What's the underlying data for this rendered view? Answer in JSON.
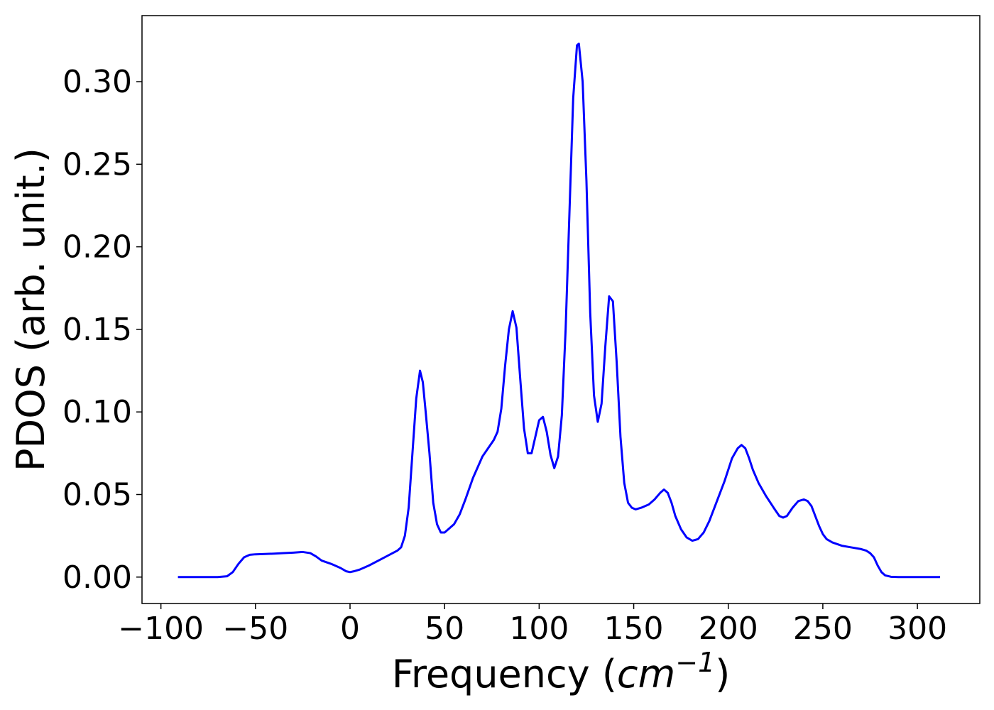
{
  "chart_data": {
    "type": "line",
    "title": "",
    "xlabel_main": "Frequency (",
    "xlabel_unit": "cm",
    "xlabel_sup": "−1",
    "xlabel_close": ")",
    "ylabel": "PDOS (arb. unit.)",
    "xlim": [
      -110,
      333
    ],
    "ylim": [
      -0.016,
      0.34
    ],
    "xticks": [
      -100,
      -50,
      0,
      50,
      100,
      150,
      200,
      250,
      300
    ],
    "xtick_labels": [
      "−100",
      "−50",
      "0",
      "50",
      "100",
      "150",
      "200",
      "250",
      "300"
    ],
    "yticks": [
      0.0,
      0.05,
      0.1,
      0.15,
      0.2,
      0.25,
      0.3
    ],
    "ytick_labels": [
      "0.00",
      "0.05",
      "0.10",
      "0.15",
      "0.20",
      "0.25",
      "0.30"
    ],
    "grid": false,
    "series": [
      {
        "color": "#0000ff",
        "x": [
          -91,
          -80,
          -70,
          -65,
          -62,
          -59,
          -56,
          -53,
          -50,
          -45,
          -40,
          -35,
          -30,
          -25,
          -21,
          -18,
          -15,
          -10,
          -5,
          -2,
          0,
          2,
          5,
          10,
          15,
          20,
          25,
          27,
          29,
          31,
          33,
          35,
          37,
          38.5,
          40,
          42,
          44,
          46,
          48,
          50,
          52,
          55,
          58,
          61,
          65,
          70,
          73,
          76,
          78,
          80,
          82,
          84,
          86,
          88,
          90,
          92,
          94,
          96,
          98,
          100,
          102,
          104,
          106,
          108,
          110,
          112,
          114,
          116,
          118,
          120,
          121,
          123,
          125,
          127,
          129,
          131,
          133,
          135,
          137,
          139,
          141,
          143,
          145,
          147,
          149,
          151,
          154,
          158,
          161,
          164,
          166,
          168,
          170,
          172,
          175,
          178,
          181,
          184,
          187,
          190,
          194,
          198,
          202,
          205,
          207,
          209,
          211,
          213,
          216,
          220,
          224,
          227,
          229,
          231,
          234,
          237,
          240,
          242,
          244,
          246,
          248,
          250,
          252,
          255,
          260,
          265,
          270,
          273,
          275,
          277,
          279,
          281,
          283,
          286,
          290,
          300,
          312
        ],
        "y": [
          0.0,
          0.0,
          0.0,
          0.0005,
          0.003,
          0.008,
          0.012,
          0.0135,
          0.0138,
          0.014,
          0.0142,
          0.0145,
          0.0148,
          0.0152,
          0.0145,
          0.0125,
          0.01,
          0.008,
          0.0055,
          0.0035,
          0.003,
          0.0035,
          0.0045,
          0.007,
          0.01,
          0.013,
          0.016,
          0.018,
          0.025,
          0.042,
          0.075,
          0.108,
          0.125,
          0.118,
          0.1,
          0.075,
          0.045,
          0.032,
          0.027,
          0.027,
          0.029,
          0.032,
          0.038,
          0.047,
          0.06,
          0.073,
          0.078,
          0.083,
          0.088,
          0.102,
          0.128,
          0.15,
          0.161,
          0.151,
          0.12,
          0.09,
          0.075,
          0.075,
          0.085,
          0.095,
          0.097,
          0.088,
          0.074,
          0.066,
          0.073,
          0.098,
          0.15,
          0.22,
          0.29,
          0.322,
          0.323,
          0.3,
          0.24,
          0.16,
          0.11,
          0.094,
          0.105,
          0.14,
          0.17,
          0.167,
          0.13,
          0.085,
          0.057,
          0.045,
          0.042,
          0.041,
          0.042,
          0.044,
          0.047,
          0.051,
          0.053,
          0.051,
          0.045,
          0.037,
          0.029,
          0.024,
          0.022,
          0.023,
          0.027,
          0.034,
          0.046,
          0.058,
          0.072,
          0.078,
          0.08,
          0.078,
          0.072,
          0.065,
          0.057,
          0.049,
          0.042,
          0.037,
          0.036,
          0.037,
          0.042,
          0.046,
          0.047,
          0.046,
          0.043,
          0.037,
          0.031,
          0.026,
          0.023,
          0.021,
          0.019,
          0.018,
          0.017,
          0.016,
          0.0145,
          0.012,
          0.007,
          0.003,
          0.001,
          0.0002,
          0.0,
          0.0,
          0.0
        ]
      }
    ]
  }
}
